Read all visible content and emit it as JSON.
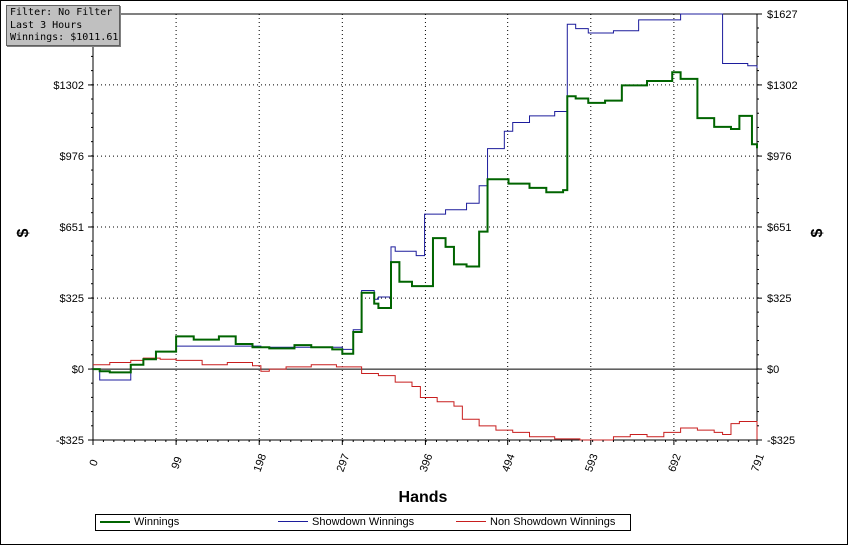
{
  "filter_box": {
    "lines": [
      "Filter: No Filter",
      "Last 3 Hours",
      "Winnings: $1011.61"
    ]
  },
  "colors": {
    "winnings": "#006400",
    "showdown": "#1c1c9c",
    "non_showdown": "#c81e1e",
    "grid": "#000000",
    "zero_line": "#000000"
  },
  "chart_data": {
    "type": "line",
    "xlabel": "Hands",
    "ylabel_left": "$",
    "ylabel_right": "$",
    "x_ticks": [
      0,
      99,
      198,
      297,
      396,
      494,
      593,
      692,
      791
    ],
    "y_ticks": [
      -325,
      0,
      325,
      651,
      976,
      1302,
      1627
    ],
    "y_tick_labels": [
      "-$325",
      "$0",
      "$325",
      "$651",
      "$976",
      "$1302",
      "$1627"
    ],
    "xlim": [
      0,
      791
    ],
    "ylim": [
      -325,
      1627
    ],
    "grid": true,
    "legend_position": "bottom",
    "series": [
      {
        "name": "Winnings",
        "x": [
          0,
          8,
          20,
          45,
          60,
          75,
          99,
          120,
          150,
          170,
          190,
          210,
          240,
          260,
          285,
          297,
          310,
          320,
          335,
          340,
          355,
          365,
          380,
          385,
          405,
          420,
          430,
          445,
          460,
          470,
          495,
          520,
          540,
          560,
          565,
          575,
          590,
          610,
          630,
          660,
          690,
          700,
          720,
          740,
          760,
          770,
          785,
          791
        ],
        "y": [
          0,
          -10,
          -15,
          20,
          45,
          80,
          150,
          135,
          150,
          115,
          100,
          95,
          110,
          100,
          90,
          70,
          170,
          350,
          300,
          280,
          490,
          400,
          380,
          380,
          600,
          560,
          480,
          470,
          630,
          870,
          850,
          830,
          810,
          820,
          1250,
          1240,
          1220,
          1230,
          1300,
          1320,
          1360,
          1330,
          1150,
          1110,
          1100,
          1160,
          1030,
          1011.61
        ]
      },
      {
        "name": "Showdown Winnings",
        "x": [
          0,
          8,
          45,
          60,
          75,
          99,
          150,
          200,
          250,
          297,
          310,
          320,
          335,
          340,
          355,
          360,
          385,
          395,
          420,
          445,
          460,
          470,
          490,
          500,
          520,
          550,
          565,
          575,
          590,
          620,
          650,
          700,
          720,
          750,
          780,
          791
        ],
        "y": [
          0,
          -50,
          20,
          45,
          80,
          105,
          105,
          100,
          100,
          90,
          180,
          360,
          320,
          330,
          560,
          540,
          520,
          710,
          730,
          760,
          840,
          1010,
          1090,
          1130,
          1160,
          1180,
          1580,
          1560,
          1540,
          1550,
          1600,
          1627,
          1627,
          1400,
          1390,
          1380
        ]
      },
      {
        "name": "Non Showdown Winnings",
        "x": [
          0,
          20,
          45,
          60,
          80,
          99,
          130,
          160,
          190,
          200,
          210,
          230,
          260,
          290,
          320,
          340,
          360,
          380,
          390,
          410,
          430,
          440,
          460,
          480,
          500,
          520,
          550,
          580,
          600,
          620,
          640,
          660,
          680,
          700,
          720,
          740,
          750,
          760,
          770,
          791
        ],
        "y": [
          20,
          30,
          40,
          50,
          45,
          40,
          20,
          30,
          15,
          -10,
          0,
          10,
          20,
          10,
          -20,
          -30,
          -60,
          -80,
          -130,
          -150,
          -170,
          -230,
          -260,
          -280,
          -290,
          -310,
          -320,
          -340,
          -330,
          -310,
          -300,
          -310,
          -290,
          -270,
          -280,
          -290,
          -300,
          -250,
          -240,
          -325
        ]
      }
    ]
  },
  "legend": [
    {
      "label": "Winnings"
    },
    {
      "label": "Showdown Winnings"
    },
    {
      "label": "Non Showdown Winnings"
    }
  ]
}
